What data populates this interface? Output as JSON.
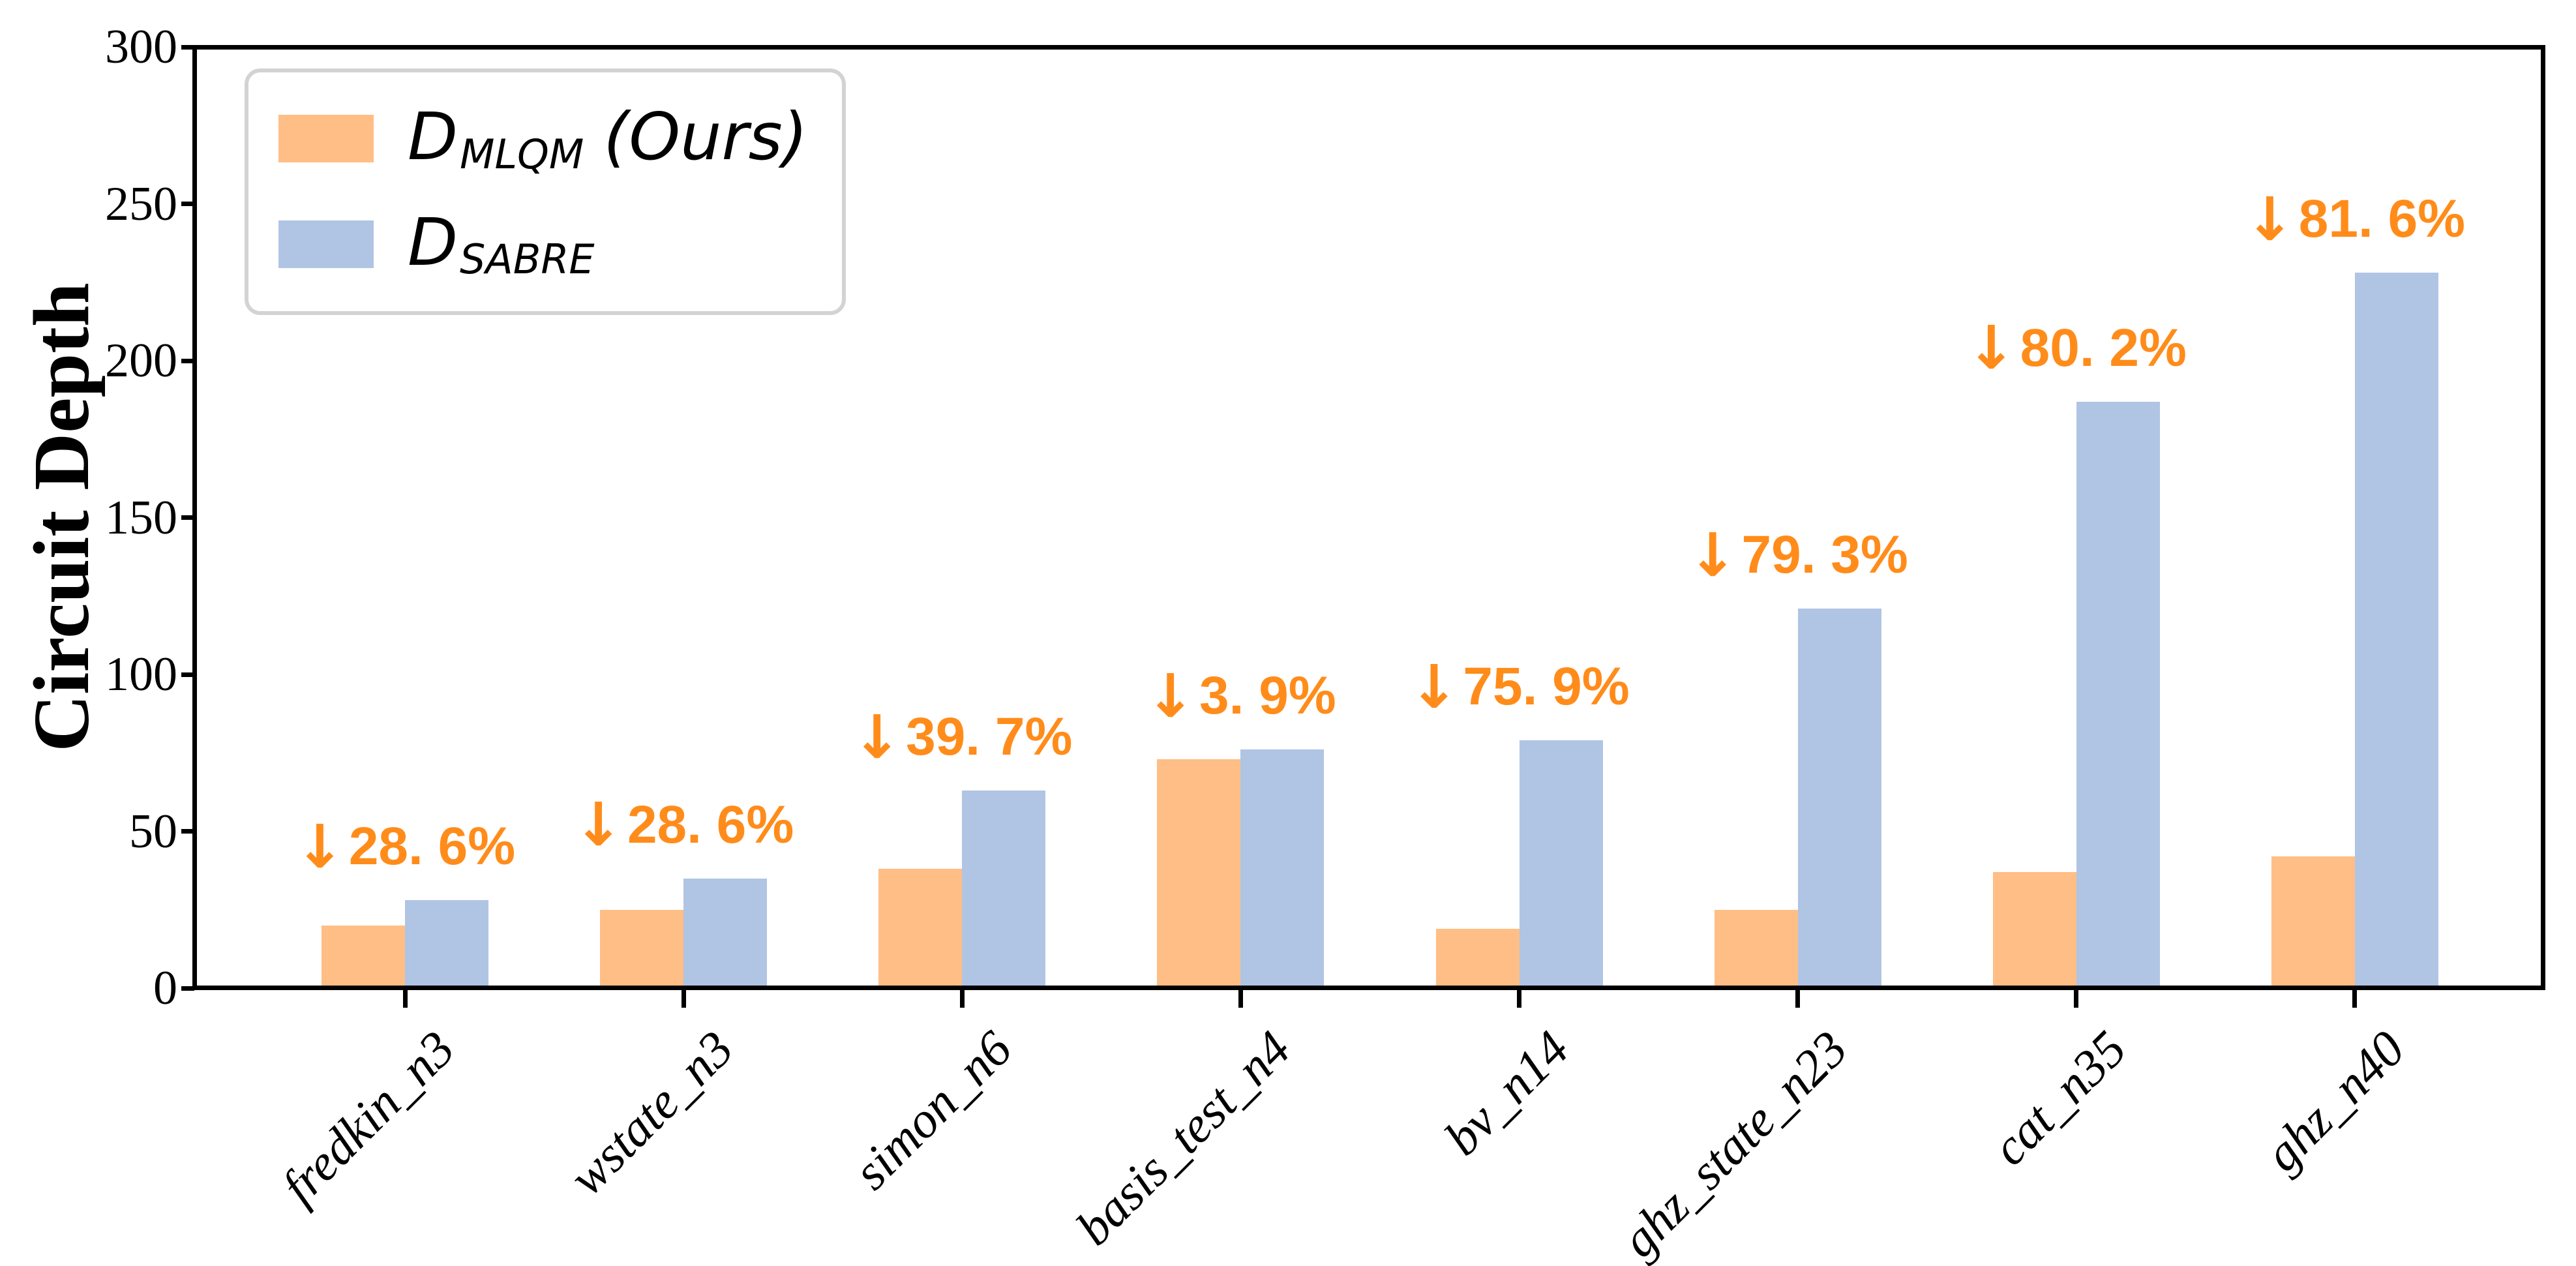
{
  "figure": {
    "background": "#FFFFFF",
    "axis_color": "#000000"
  },
  "chart_data": {
    "type": "bar",
    "title": "",
    "xlabel": "",
    "ylabel": "Circuit Depth",
    "ylim": [
      0,
      300
    ],
    "yticks": [
      "0",
      "50",
      "100",
      "150",
      "200",
      "250",
      "300"
    ],
    "grid": false,
    "legend_position": "upper-left",
    "legend_border_color": "#D3D3D3",
    "categories": [
      "fredkin_n3",
      "wstate_n3",
      "simon_n6",
      "basis_test_n4",
      "bv_n14",
      "ghz_state_n23",
      "cat_n35",
      "ghz_n40"
    ],
    "series": [
      {
        "name": "D_MLQM (Ours)",
        "legend": {
          "base": "D",
          "sub": "MLQM",
          "suffix": "(Ours)"
        },
        "color": "#FFBE86",
        "values": [
          20,
          25,
          38,
          73,
          19,
          25,
          37,
          42
        ]
      },
      {
        "name": "D_SABRE",
        "legend": {
          "base": "D",
          "sub": "SABRE",
          "suffix": ""
        },
        "color": "#B0C4E4",
        "values": [
          28,
          35,
          63,
          76,
          79,
          121,
          187,
          228
        ]
      }
    ],
    "annotations": {
      "arrow_icon": "↓",
      "color": "#FF8C1A",
      "labels": [
        "28. 6%",
        "28. 6%",
        "39. 7%",
        "3. 9%",
        "75. 9%",
        "79. 3%",
        "80. 2%",
        "81. 6%"
      ]
    }
  }
}
